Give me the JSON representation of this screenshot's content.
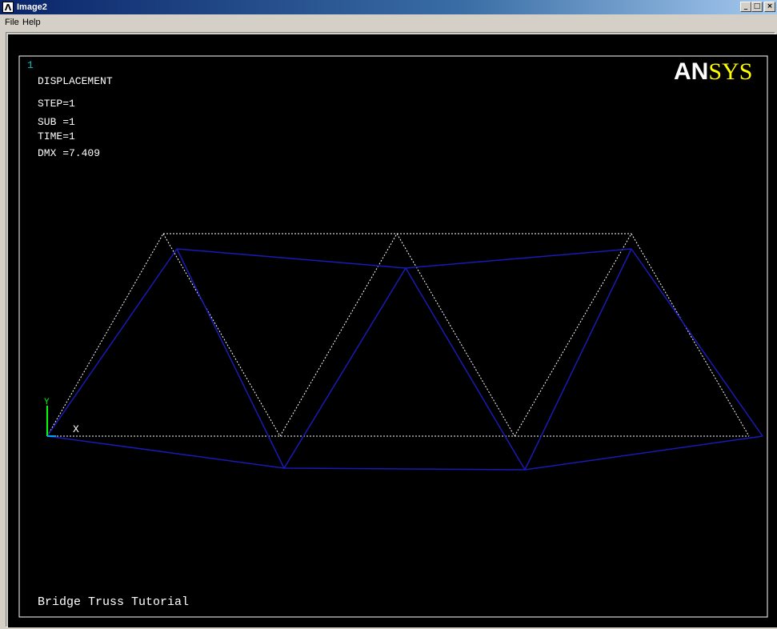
{
  "window": {
    "title": "Image2",
    "icon": "ansys-app-icon",
    "buttons": {
      "minimize": "_",
      "maximize": "□",
      "close": "×"
    }
  },
  "menubar": {
    "items": [
      "File",
      "Help"
    ]
  },
  "plot": {
    "window_number": "1",
    "heading": "DISPLACEMENT",
    "info": {
      "step": "STEP=1",
      "sub": "SUB =1",
      "time": "TIME=1",
      "dmx": "DMX =7.409"
    },
    "logo": {
      "part1": "AN",
      "part2": "SYS"
    },
    "axis": {
      "y": "Y",
      "x": "X"
    },
    "footer_title": "Bridge Truss Tutorial",
    "colors": {
      "background": "#000000",
      "frame": "#ffffff",
      "undeformed": "#ffffff",
      "deformed": "#1a1ab4",
      "logo_white": "#ffffff",
      "logo_yellow": "#ffff00",
      "window_number": "#00c0c0",
      "axis_y": "#00ff00",
      "axis_x": "#ffffff"
    }
  }
}
